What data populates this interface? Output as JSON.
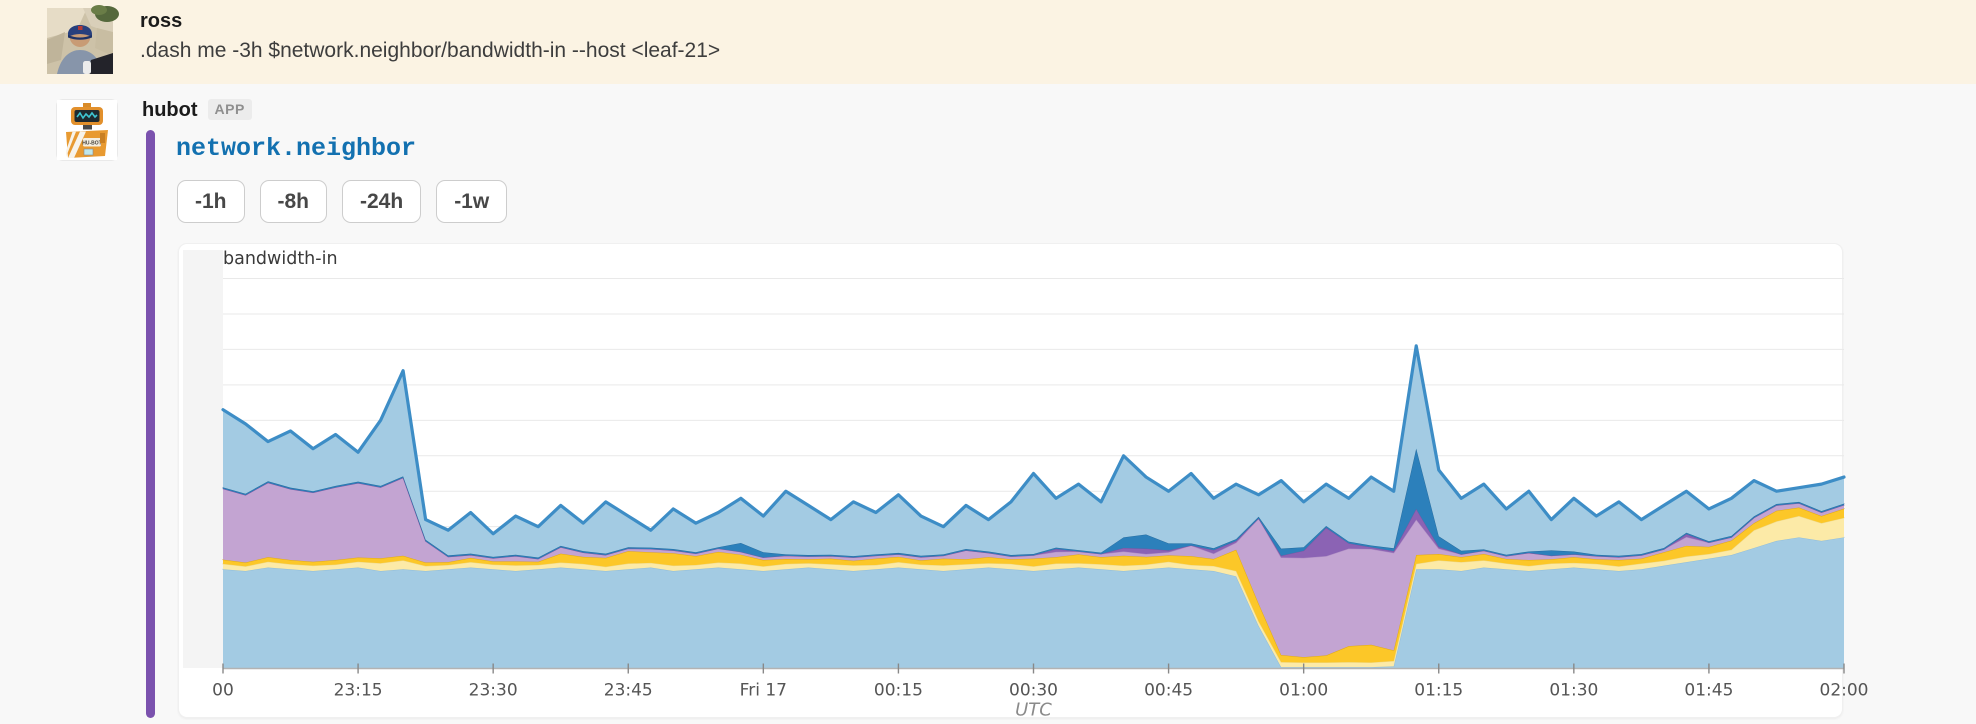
{
  "ross": {
    "username": "ross",
    "text": ".dash me -3h $network.neighbor/bandwidth-in --host <leaf-21>"
  },
  "hubot": {
    "username": "hubot",
    "badge": "APP",
    "link_title": "network.neighbor",
    "buttons": [
      "-1h",
      "-8h",
      "-24h",
      "-1w"
    ]
  },
  "colors": {
    "page_bg": "#f8f8f8",
    "highlight_band": "#fbf3e3",
    "accent_bar": "#7b52ae",
    "link_blue": "#1371b0",
    "chart": {
      "margin": "#f4f4f4",
      "grid": "#e9e9e9",
      "axis": "#b3b3b3",
      "tick": "#888888",
      "tick_label": "#555555",
      "title": "#3a3a3a",
      "unit_label": "#8a8a8a",
      "area": "#a3cbe3",
      "line": "#3d8dc6"
    }
  },
  "chart_data": {
    "type": "area",
    "stacked": true,
    "title": "bandwidth-in",
    "xlabel": "UTC",
    "grid": true,
    "legend": "none",
    "ylim": [
      0,
      110
    ],
    "grid_step": 10,
    "x_start_minute": 0,
    "x_step_minutes": 2.5,
    "x_tick_minutes": [
      0,
      15,
      30,
      45,
      60,
      75,
      90,
      105,
      120,
      135,
      150,
      165,
      180
    ],
    "x_tick_labels": [
      "00",
      "23:15",
      "23:30",
      "23:45",
      "Fri 17",
      "00:15",
      "00:30",
      "00:45",
      "01:00",
      "01:15",
      "01:30",
      "01:45",
      "02:00"
    ],
    "series": [
      {
        "name": "bottom-blue",
        "fill": "#a3cbe3",
        "stroke": "#8fbcd9",
        "stroke_width": 1,
        "values": [
          28,
          27.5,
          28.5,
          28,
          27.5,
          28,
          28.5,
          27.5,
          28,
          27.5,
          28,
          28.5,
          28,
          27.5,
          28,
          28.5,
          28,
          27.5,
          28,
          28.5,
          27.5,
          28,
          28.5,
          28,
          27.5,
          28,
          28.5,
          28,
          27.5,
          28,
          28.5,
          28,
          27.5,
          28,
          28.5,
          28,
          27.5,
          28,
          28.5,
          28,
          27.5,
          28,
          28.5,
          28,
          27.5,
          26,
          12,
          0.4,
          0.4,
          0.4,
          0.4,
          0.4,
          0.6,
          28,
          28,
          27.5,
          28.5,
          28,
          27.5,
          28,
          28.5,
          28,
          27.5,
          28,
          29,
          30,
          31,
          32,
          34,
          36,
          37,
          36,
          37
        ]
      },
      {
        "name": "pale-yellow",
        "fill": "#fceaa7",
        "stroke": "#eed98b",
        "stroke_width": 1,
        "values": [
          1.5,
          1.3,
          1.6,
          1.4,
          1.5,
          1.3,
          1.6,
          2.2,
          2.5,
          1.4,
          1.2,
          1.5,
          1.3,
          1.6,
          1.2,
          1.4,
          1.5,
          1.2,
          1.6,
          1.3,
          1.5,
          1.2,
          1.4,
          1.6,
          1.3,
          1.5,
          1.2,
          1.4,
          1.6,
          1.2,
          1.5,
          1.3,
          1.6,
          1.4,
          1.2,
          1.5,
          1.3,
          1.6,
          1.2,
          1.4,
          1.5,
          1.3,
          1.6,
          1.2,
          1.4,
          1.5,
          1.3,
          1.4,
          1.3,
          1.3,
          1.4,
          1.3,
          1.5,
          1.5,
          2.5,
          2.5,
          2.0,
          1.6,
          1.4,
          1.6,
          1.3,
          1.5,
          1.3,
          1.6,
          1.4,
          1.6,
          1.3,
          1.5,
          5,
          5.5,
          6,
          5,
          5.5
        ]
      },
      {
        "name": "gold",
        "fill": "#fcc728",
        "stroke": "#e2ab10",
        "stroke_width": 1,
        "values": [
          1.2,
          1.1,
          1.3,
          1.2,
          1.1,
          1.3,
          1.2,
          1.4,
          1.3,
          1.0,
          0.8,
          1.2,
          0.9,
          1.1,
          0.9,
          2.5,
          2.0,
          2.5,
          3.5,
          3.0,
          3.5,
          2.5,
          3.0,
          2.5,
          1.8,
          1.4,
          1.1,
          1.6,
          1.3,
          1.8,
          1.5,
          1.2,
          1.9,
          1.4,
          1.7,
          1.3,
          2.2,
          1.8,
          2.5,
          2.0,
          2.8,
          2.2,
          1.8,
          2.5,
          2.0,
          6,
          5,
          2,
          1.5,
          2,
          4.5,
          5,
          3,
          2.5,
          1.8,
          1.4,
          1.8,
          1.3,
          1.7,
          1.2,
          1.6,
          1.3,
          1.8,
          1.4,
          2.4,
          3.0,
          2.0,
          2.6,
          2.0,
          3.0,
          2.4,
          2.0,
          2.6
        ]
      },
      {
        "name": "lavender",
        "fill": "#c3a4d2",
        "stroke": "#b08fc4",
        "stroke_width": 1,
        "values": [
          20,
          19,
          21,
          20,
          19.5,
          20.5,
          21,
          20,
          22,
          6,
          1.5,
          0.8,
          0.9,
          1.5,
          0.8,
          1.8,
          1.2,
          0.8,
          0.7,
          0.9,
          0.8,
          0.7,
          0.9,
          0.8,
          0.7,
          0.9,
          0.8,
          0.7,
          0.9,
          0.8,
          0.7,
          0.9,
          0.8,
          2.5,
          1.2,
          0.8,
          0.9,
          1.5,
          0.8,
          0.9,
          1.2,
          0.8,
          0.9,
          3,
          1.5,
          2,
          24,
          27.5,
          28,
          28,
          27.5,
          27,
          27.5,
          10,
          1.5,
          0.8,
          0.9,
          0.8,
          2,
          1,
          0.8,
          0.9,
          0.8,
          0.9,
          0.8,
          2.5,
          1.2,
          0.9,
          1.5,
          1.5,
          1.2,
          1,
          1
        ]
      },
      {
        "name": "dark-purple",
        "fill": "#8b63b4",
        "stroke": "#7a539e",
        "stroke_width": 0.8,
        "values": [
          0,
          0,
          0,
          0,
          0,
          0,
          0,
          0,
          0,
          0,
          0,
          0,
          0,
          0,
          0,
          0,
          0,
          0,
          0,
          0,
          0,
          0,
          0,
          0,
          0,
          0,
          0,
          0,
          0,
          0,
          0,
          0,
          0,
          0,
          0,
          0,
          0,
          0.8,
          0,
          0,
          1,
          1.5,
          0.5,
          0,
          1,
          0.5,
          0,
          0.5,
          2,
          8,
          1.5,
          0.5,
          0.5,
          3,
          0.5,
          0,
          0,
          0,
          0,
          0,
          0,
          0,
          0,
          0,
          0,
          0.8,
          0,
          0,
          0,
          0,
          0,
          0,
          0
        ]
      },
      {
        "name": "dark-blue",
        "fill": "#2c80bb",
        "stroke": "#24689a",
        "stroke_width": 0.8,
        "values": [
          0.4,
          0.4,
          0.4,
          0.4,
          0.4,
          0.4,
          0.4,
          0.4,
          0.4,
          0.4,
          0.4,
          0.4,
          0.4,
          0.4,
          0.4,
          0.4,
          0.4,
          0.4,
          0.4,
          0.4,
          0.4,
          0.4,
          0.4,
          2.5,
          1.5,
          0.4,
          0.4,
          0.4,
          0.4,
          0.4,
          0.4,
          0.4,
          0.4,
          0.4,
          0.4,
          0.4,
          0.4,
          0.4,
          0.4,
          0.4,
          3,
          4,
          2,
          0.6,
          0.5,
          0.5,
          0.5,
          2,
          1,
          0.5,
          0.5,
          0.5,
          0.8,
          17,
          3,
          1,
          0.4,
          0.4,
          0.4,
          1.5,
          0.8,
          0.4,
          0.4,
          0.4,
          0.4,
          0.4,
          0.4,
          0.4,
          0.4,
          0.4,
          0.4,
          0.4,
          0.4
        ]
      }
    ],
    "total": {
      "name": "total-inbound",
      "fill": "#a3cbe3",
      "stroke": "#3d8dc6",
      "stroke_width": 3.2,
      "values": [
        73,
        69,
        64,
        67,
        62,
        66,
        61,
        70,
        84,
        42,
        39,
        44,
        38,
        43,
        40,
        46,
        41,
        47,
        43,
        39,
        45,
        41,
        44,
        48,
        43,
        50,
        46,
        42,
        47,
        44,
        49,
        43,
        40,
        46,
        42,
        47,
        55,
        48,
        52,
        47,
        60,
        54,
        50,
        55,
        48,
        52,
        49,
        53,
        47,
        52,
        48,
        54,
        50,
        91,
        56,
        48,
        52,
        45,
        50,
        42,
        48,
        43,
        47,
        42,
        46,
        50,
        45,
        48,
        53,
        50,
        51,
        52,
        54
      ]
    }
  }
}
